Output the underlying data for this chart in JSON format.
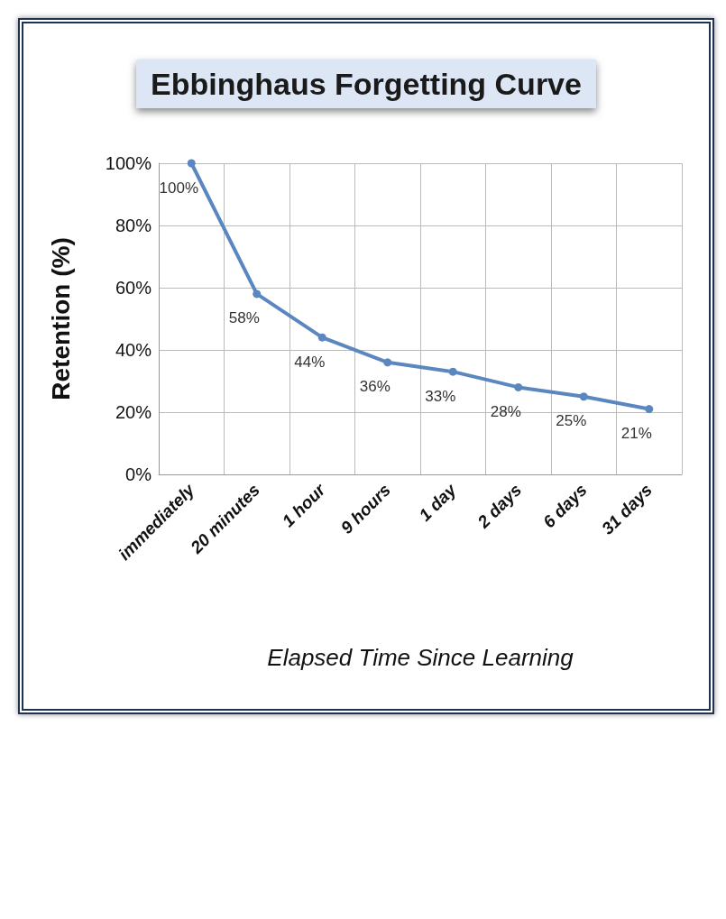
{
  "chart_data": {
    "type": "line",
    "title": "Ebbinghaus Forgetting Curve",
    "xlabel": "Elapsed Time Since Learning",
    "ylabel": "Retention (%)",
    "categories": [
      "immediately",
      "20 minutes",
      "1 hour",
      "9 hours",
      "1 day",
      "2 days",
      "6 days",
      "31 days"
    ],
    "series": [
      {
        "color": "#5b87c0",
        "values": [
          100,
          58,
          44,
          36,
          33,
          28,
          25,
          21
        ],
        "value_labels": [
          "100%",
          "58%",
          "44%",
          "36%",
          "33%",
          "28%",
          "25%",
          "21%"
        ]
      }
    ],
    "ylim": [
      0,
      100
    ],
    "yticks": [
      {
        "value": 0,
        "label": "0%"
      },
      {
        "value": 20,
        "label": "20%"
      },
      {
        "value": 40,
        "label": "40%"
      },
      {
        "value": 60,
        "label": "60%"
      },
      {
        "value": 80,
        "label": "80%"
      },
      {
        "value": 100,
        "label": "100%"
      }
    ],
    "grid": true,
    "marker": "circle",
    "line_style": "solid"
  }
}
